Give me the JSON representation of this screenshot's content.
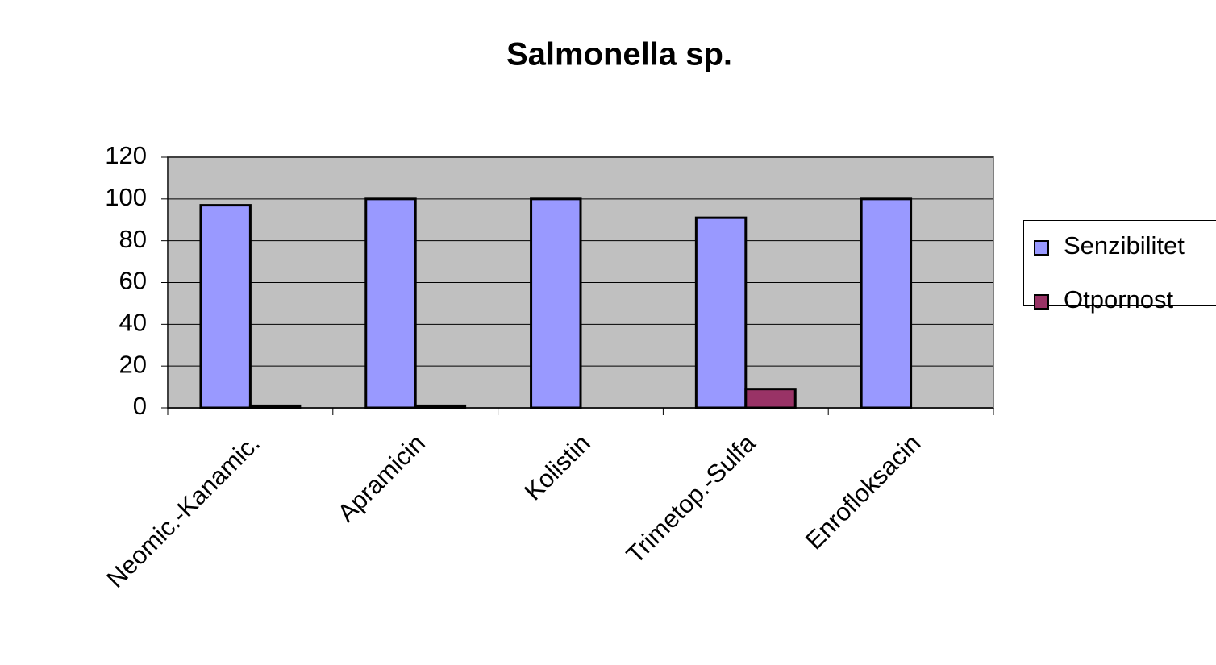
{
  "chart_data": {
    "type": "bar",
    "title": "Salmonella sp.",
    "categories": [
      "Neomic.-Kanamic.",
      "Apramicin",
      "Kolistin",
      "Trimetop.-Sulfa",
      "Enrofloksacin"
    ],
    "series": [
      {
        "name": "Senzibilitet",
        "color": "#9999ff",
        "values": [
          97,
          100,
          100,
          91,
          100
        ]
      },
      {
        "name": "Otpornost",
        "color": "#993366",
        "values": [
          1,
          1,
          0,
          9,
          0
        ]
      }
    ],
    "ylim": [
      0,
      120
    ],
    "yticks": [
      0,
      20,
      40,
      60,
      80,
      100,
      120
    ],
    "grid": true,
    "legend": "right"
  }
}
